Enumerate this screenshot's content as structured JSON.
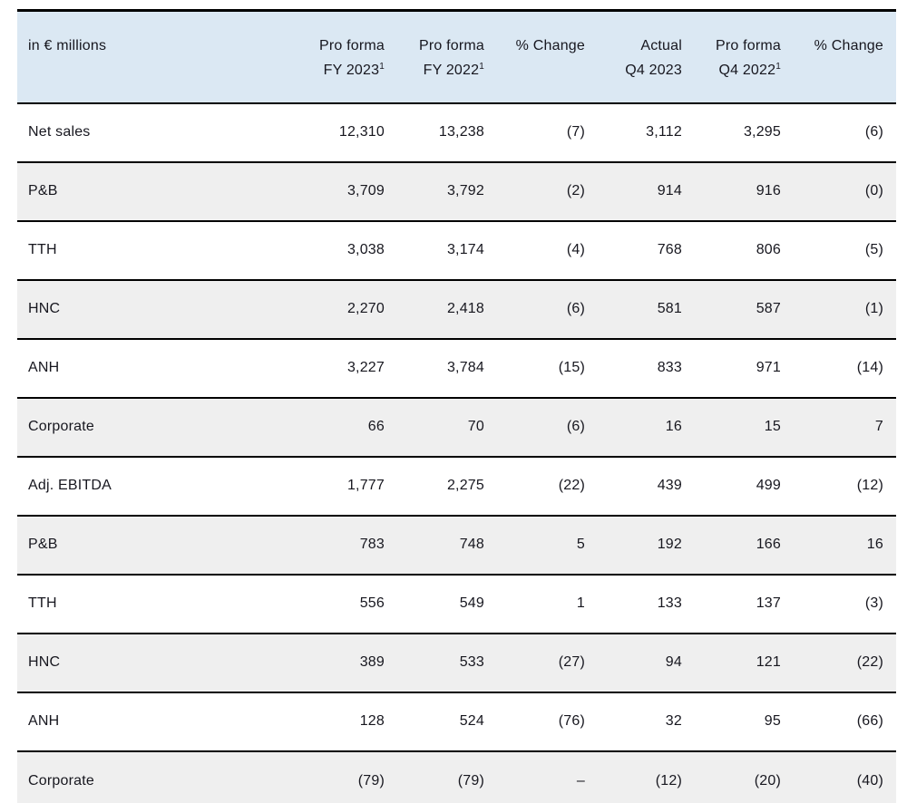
{
  "table": {
    "unit_label": "in € millions",
    "columns": [
      {
        "line1": "Pro forma",
        "line2": "FY 2023",
        "sup": "1"
      },
      {
        "line1": "Pro forma",
        "line2": "FY 2022",
        "sup": "1"
      },
      {
        "line1": "% Change",
        "line2": "",
        "sup": ""
      },
      {
        "line1": "Actual",
        "line2": "Q4 2023",
        "sup": ""
      },
      {
        "line1": "Pro forma",
        "line2": "Q4 2022",
        "sup": "1"
      },
      {
        "line1": "% Change",
        "line2": "",
        "sup": ""
      }
    ],
    "rows": [
      {
        "label": "Net sales",
        "values": [
          "12,310",
          "13,238",
          "(7)",
          "3,112",
          "3,295",
          "(6)"
        ]
      },
      {
        "label": "P&B",
        "values": [
          "3,709",
          "3,792",
          "(2)",
          "914",
          "916",
          "(0)"
        ]
      },
      {
        "label": "TTH",
        "values": [
          "3,038",
          "3,174",
          "(4)",
          "768",
          "806",
          "(5)"
        ]
      },
      {
        "label": "HNC",
        "values": [
          "2,270",
          "2,418",
          "(6)",
          "581",
          "587",
          "(1)"
        ]
      },
      {
        "label": "ANH",
        "values": [
          "3,227",
          "3,784",
          "(15)",
          "833",
          "971",
          "(14)"
        ]
      },
      {
        "label": "Corporate",
        "values": [
          "66",
          "70",
          "(6)",
          "16",
          "15",
          "7"
        ]
      },
      {
        "label": "Adj. EBITDA",
        "values": [
          "1,777",
          "2,275",
          "(22)",
          "439",
          "499",
          "(12)"
        ]
      },
      {
        "label": "P&B",
        "values": [
          "783",
          "748",
          "5",
          "192",
          "166",
          "16"
        ]
      },
      {
        "label": "TTH",
        "values": [
          "556",
          "549",
          "1",
          "133",
          "137",
          "(3)"
        ]
      },
      {
        "label": "HNC",
        "values": [
          "389",
          "533",
          "(27)",
          "94",
          "121",
          "(22)"
        ]
      },
      {
        "label": "ANH",
        "values": [
          "128",
          "524",
          "(76)",
          "32",
          "95",
          "(66)"
        ]
      },
      {
        "label": "Corporate",
        "values": [
          "(79)",
          "(79)",
          "–",
          "(12)",
          "(20)",
          "(40)"
        ]
      }
    ]
  },
  "colors": {
    "header_bg": "#dbe8f3",
    "row_alt_bg": "#efefef",
    "border": "#000000",
    "text": "#17171f"
  }
}
